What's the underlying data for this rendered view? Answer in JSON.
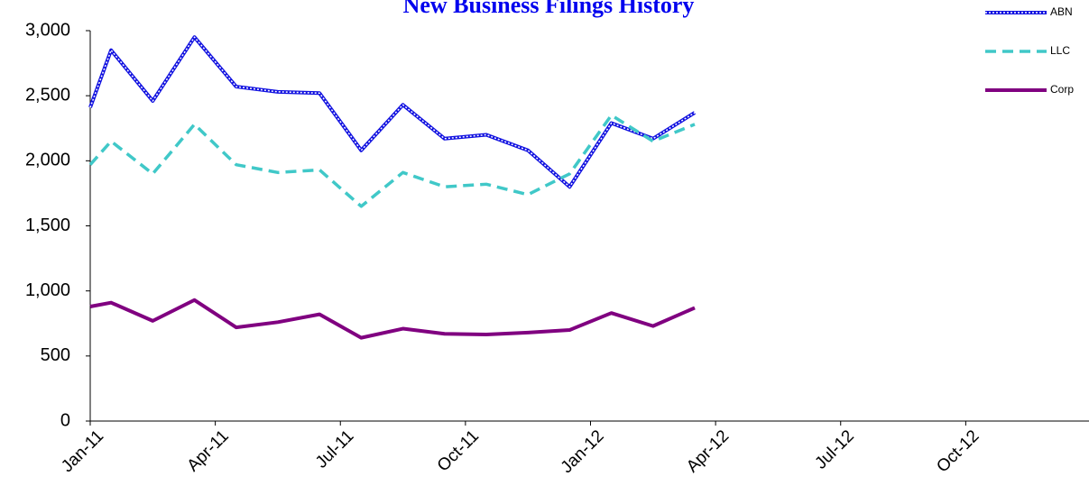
{
  "chart_data": {
    "type": "line",
    "title": "New Business Filings History",
    "x": [
      0,
      0.5,
      1.5,
      2.5,
      3.5,
      4.5,
      5.5,
      6.5,
      7.5,
      8.5,
      9.5,
      10.5,
      11.5,
      12.5,
      13.5,
      14.5
    ],
    "series": [
      {
        "name": "ABN",
        "color": "#1010e0",
        "values": [
          2410,
          2850,
          2460,
          2950,
          2570,
          2530,
          2520,
          2080,
          2430,
          2170,
          2200,
          2080,
          1800,
          2290,
          2170,
          2370
        ]
      },
      {
        "name": "LLC",
        "color": "#40c8c8",
        "values": [
          1970,
          2150,
          1900,
          2280,
          1970,
          1910,
          1930,
          1650,
          1910,
          1800,
          1820,
          1740,
          1900,
          2350,
          2150,
          2280
        ]
      },
      {
        "name": "Corp",
        "color": "#800080",
        "values": [
          880,
          910,
          770,
          930,
          720,
          760,
          820,
          640,
          710,
          670,
          665,
          680,
          700,
          830,
          730,
          870
        ]
      }
    ],
    "xlim": [
      0,
      24
    ],
    "xticks": [
      {
        "value": 0,
        "label": "Jan-11"
      },
      {
        "value": 3,
        "label": "Apr-11"
      },
      {
        "value": 6,
        "label": "Jul-11"
      },
      {
        "value": 9,
        "label": "Oct-11"
      },
      {
        "value": 12,
        "label": "Jan-12"
      },
      {
        "value": 15,
        "label": "Apr-12"
      },
      {
        "value": 18,
        "label": "Jul-12"
      },
      {
        "value": 21,
        "label": "Oct-12"
      }
    ],
    "ylim": [
      0,
      3000
    ],
    "yticks": [
      0,
      500,
      {
        "value": 1000,
        "label": "1,000"
      },
      {
        "value": 1500,
        "label": "1,500"
      },
      {
        "value": 2000,
        "label": "2,000"
      },
      {
        "value": 2500,
        "label": "2,500"
      },
      {
        "value": 3000,
        "label": "3,000"
      }
    ],
    "legend": "top-right",
    "grid": false
  }
}
